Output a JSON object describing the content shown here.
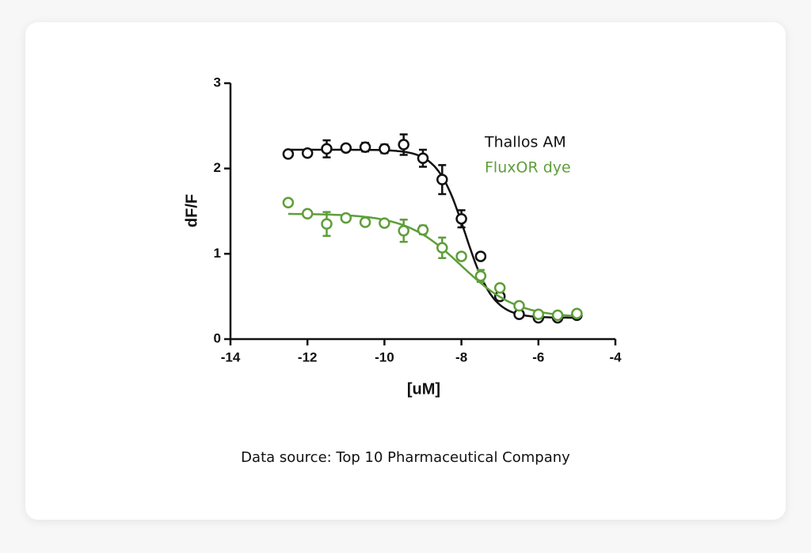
{
  "chart_data": {
    "type": "scatter",
    "x_label": "[uM]",
    "y_label": "dF/F",
    "caption": "Data source: Top 10 Pharmaceutical Company",
    "xlim": [
      -14,
      -4
    ],
    "xticks": [
      -14,
      -12,
      -10,
      -8,
      -6,
      -4
    ],
    "ylim": [
      0,
      3
    ],
    "yticks": [
      0,
      1,
      2,
      3
    ],
    "x": [
      -12.5,
      -12,
      -11.5,
      -11,
      -10.5,
      -10,
      -9.5,
      -9,
      -8.5,
      -8,
      -7.5,
      -7,
      -6.5,
      -6,
      -5.5,
      -5
    ],
    "series": [
      {
        "name": "Thallos AM",
        "color": "#111111",
        "values": [
          2.17,
          2.18,
          2.23,
          2.24,
          2.25,
          2.23,
          2.28,
          2.12,
          1.87,
          1.41,
          0.97,
          0.5,
          0.29,
          0.25,
          0.25,
          0.28
        ],
        "errors": [
          0.03,
          0.03,
          0.1,
          0.03,
          0.05,
          0.05,
          0.12,
          0.1,
          0.17,
          0.1,
          0.03,
          0.03,
          0.03,
          0.03,
          0.03,
          0.03
        ],
        "fit": {
          "top": 2.22,
          "bottom": 0.25,
          "logEC50": -7.9,
          "hill": 1.2
        }
      },
      {
        "name": "FluxOR dye",
        "color": "#5e9e3a",
        "values": [
          1.6,
          1.47,
          1.35,
          1.42,
          1.37,
          1.36,
          1.27,
          1.28,
          1.07,
          0.97,
          0.74,
          0.6,
          0.39,
          0.29,
          0.28,
          0.3
        ],
        "errors": [
          0.03,
          0.03,
          0.14,
          0.03,
          0.03,
          0.03,
          0.13,
          0.05,
          0.12,
          0.03,
          0.07,
          0.03,
          0.03,
          0.03,
          0.03,
          0.03
        ],
        "fit": {
          "top": 1.47,
          "bottom": 0.25,
          "logEC50": -8.0,
          "hill": 0.6
        }
      }
    ]
  }
}
